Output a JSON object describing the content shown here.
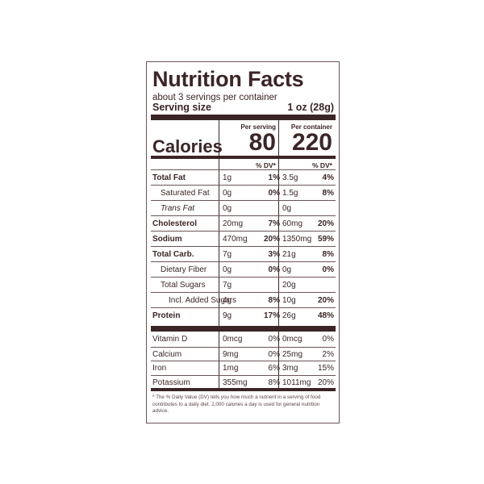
{
  "title": "Nutrition Facts",
  "servings": "about 3 servings per container",
  "serving_size": {
    "label": "Serving size",
    "value": "1 oz (28g)"
  },
  "columns": {
    "per_serving": "Per serving",
    "per_container": "Per container"
  },
  "calories": {
    "label": "Calories",
    "per_serving": "80",
    "per_container": "220"
  },
  "dv_header": "% DV*",
  "nutrients": [
    {
      "name": "Total Fat",
      "amt1": "1g",
      "dv1": "1%",
      "amt2": "3.5g",
      "dv2": "4%"
    },
    {
      "name": "Saturated Fat",
      "amt1": "0g",
      "dv1": "0%",
      "amt2": "1.5g",
      "dv2": "8%"
    },
    {
      "name": "Trans Fat",
      "amt1": "0g",
      "dv1": "",
      "amt2": "0g",
      "dv2": ""
    },
    {
      "name": "Cholesterol",
      "amt1": "20mg",
      "dv1": "7%",
      "amt2": "60mg",
      "dv2": "20%"
    },
    {
      "name": "Sodium",
      "amt1": "470mg",
      "dv1": "20%",
      "amt2": "1350mg",
      "dv2": "59%"
    },
    {
      "name": "Total Carb.",
      "amt1": "7g",
      "dv1": "3%",
      "amt2": "21g",
      "dv2": "8%"
    },
    {
      "name": "Dietary Fiber",
      "amt1": "0g",
      "dv1": "0%",
      "amt2": "0g",
      "dv2": "0%"
    },
    {
      "name": "Total Sugars",
      "amt1": "7g",
      "dv1": "",
      "amt2": "20g",
      "dv2": ""
    },
    {
      "name": "Incl. Added Sugars",
      "amt1": "4g",
      "dv1": "8%",
      "amt2": "10g",
      "dv2": "20%"
    },
    {
      "name": "Protein",
      "amt1": "9g",
      "dv1": "17%",
      "amt2": "26g",
      "dv2": "48%"
    }
  ],
  "vitamins": [
    {
      "name": "Vitamin D",
      "amt1": "0mcg",
      "dv1": "0%",
      "amt2": "0mcg",
      "dv2": "0%"
    },
    {
      "name": "Calcium",
      "amt1": "9mg",
      "dv1": "0%",
      "amt2": "25mg",
      "dv2": "2%"
    },
    {
      "name": "Iron",
      "amt1": "1mg",
      "dv1": "6%",
      "amt2": "3mg",
      "dv2": "15%"
    },
    {
      "name": "Potassium",
      "amt1": "355mg",
      "dv1": "8%",
      "amt2": "1011mg",
      "dv2": "20%"
    }
  ],
  "footnote": "* The % Daily Value (DV) tells you how much a nutrient in a serving of food contributes to a daily diet. 2,000 calories a day is used for general nutrition advice."
}
